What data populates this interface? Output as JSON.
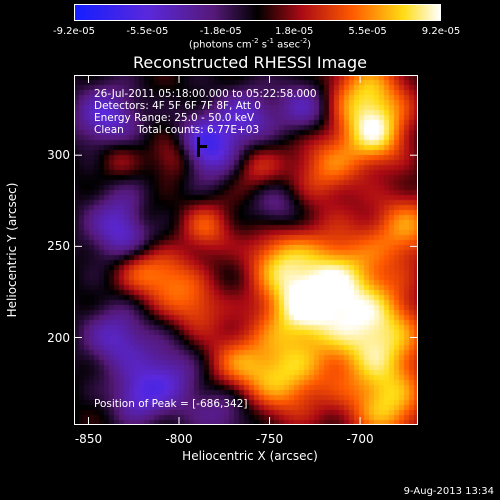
{
  "colorbar": {
    "ticks": [
      "-9.2e-05",
      "-5.5e-05",
      "-1.8e-05",
      "1.8e-05",
      "5.5e-05",
      "9.2e-05"
    ],
    "units_prefix": "(photons cm",
    "units_sup1": "-2",
    "units_mid": " s",
    "units_sup2": "-1",
    "units_mid2": " asec",
    "units_sup3": "-2",
    "units_suffix": ")"
  },
  "chart_data": {
    "type": "heatmap",
    "title": "Reconstructed RHESSI Image",
    "xlabel": "Heliocentric X (arcsec)",
    "ylabel": "Heliocentric Y (arcsec)",
    "xlim": [
      -858,
      -668
    ],
    "ylim": [
      152,
      344
    ],
    "xticks": [
      "-850",
      "-800",
      "-750",
      "-700"
    ],
    "xtick_values": [
      -850,
      -800,
      -750,
      -700
    ],
    "yticks": [
      "300",
      "250",
      "200"
    ],
    "ytick_values": [
      300,
      250,
      200
    ],
    "value_range": [
      -9.2e-05,
      9.2e-05
    ],
    "annotations": [
      "26-Jul-2011 05:18:00.000 to 05:22:58.000",
      "Detectors: 4F 5F 6F 7F 8F, Att 0",
      "Energy Range: 25.0 - 50.0 keV",
      "Clean    Total counts: 6.77E+03"
    ],
    "peak_label": "Position of Peak = [-686,342]",
    "peak": [
      -686,
      342
    ]
  },
  "footer": {
    "date": "9-Aug-2013 13:34"
  }
}
